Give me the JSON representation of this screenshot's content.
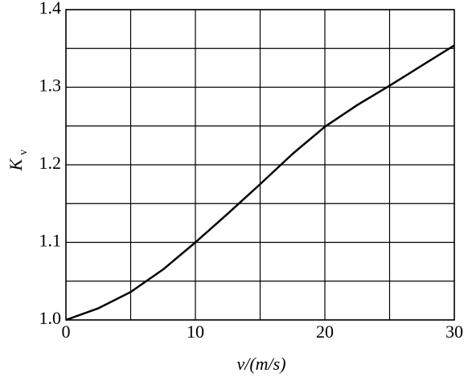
{
  "chart_data": {
    "type": "line",
    "xlabel": "v/(m/s)",
    "ylabel": "K",
    "ylabel_sub": "v",
    "x": [
      0,
      2.5,
      5,
      7.5,
      10,
      12.5,
      15,
      17.5,
      20,
      22.5,
      25,
      27.5,
      30
    ],
    "series": [
      {
        "name": "K_v",
        "color": "#000000",
        "values": [
          1.0,
          1.015,
          1.036,
          1.065,
          1.1,
          1.137,
          1.175,
          1.214,
          1.249,
          1.277,
          1.302,
          1.328,
          1.354
        ]
      }
    ],
    "xlim": [
      0,
      30
    ],
    "xticks": [
      0,
      10,
      20,
      30
    ],
    "xminor": [
      5,
      15,
      25
    ],
    "ylim": [
      1.0,
      1.4
    ],
    "yticks": [
      {
        "value": 1.0,
        "label": "1.0"
      },
      {
        "value": 1.1,
        "label": "1.1"
      },
      {
        "value": 1.2,
        "label": "1.2"
      },
      {
        "value": 1.3,
        "label": "1.3"
      },
      {
        "value": 1.4,
        "label": "1.4"
      }
    ],
    "yminor": [
      1.05,
      1.15,
      1.25,
      1.35
    ],
    "grid": true
  }
}
